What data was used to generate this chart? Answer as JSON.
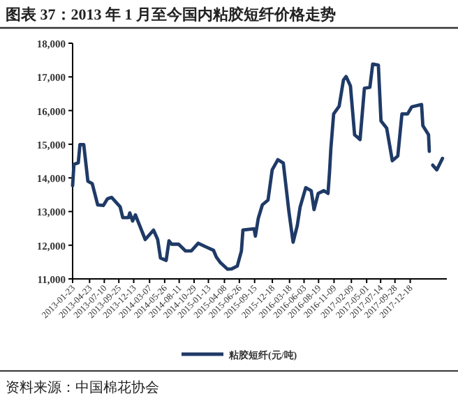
{
  "chart_data": {
    "type": "line",
    "title": "图表 37：2013 年 1 月至今国内粘胶短纤价格走势",
    "annotations": [
      "资料来源：中国棉花协会"
    ],
    "legend": "bottom",
    "x": [
      "2013-01-23",
      "2013-01-30",
      "2013-02-22",
      "2013-03-03",
      "2013-03-23",
      "2013-04-14",
      "2013-05-07",
      "2013-06-05",
      "2013-07-05",
      "2013-07-27",
      "2013-08-18",
      "2013-10-02",
      "2013-10-16",
      "2013-11-15",
      "2013-11-22",
      "2013-12-07",
      "2013-12-22",
      "2014-01-13",
      "2014-02-12",
      "2014-03-06",
      "2014-03-28",
      "2014-04-19",
      "2014-05-04",
      "2014-06-03",
      "2014-06-18",
      "2014-07-02",
      "2014-08-08",
      "2014-09-14",
      "2014-10-14",
      "2014-11-20",
      "2014-12-27",
      "2015-02-09",
      "2015-02-24",
      "2015-03-18",
      "2015-04-24",
      "2015-05-17",
      "2015-06-15",
      "2015-07-07",
      "2015-07-15",
      "2015-09-12",
      "2015-09-19",
      "2015-10-04",
      "2015-10-26",
      "2015-11-25",
      "2015-12-17",
      "2016-01-16",
      "2016-02-14",
      "2016-03-15",
      "2016-04-06",
      "2016-04-28",
      "2016-05-13",
      "2016-06-12",
      "2016-07-11",
      "2016-07-26",
      "2016-08-17",
      "2016-09-16",
      "2016-10-08",
      "2016-10-16",
      "2016-10-23",
      "2016-11-07",
      "2016-12-06",
      "2016-12-29",
      "2017-01-12",
      "2017-02-04",
      "2017-02-26",
      "2017-03-27",
      "2017-04-19",
      "2017-05-18",
      "2017-06-02",
      "2017-07-02",
      "2017-07-16",
      "2017-08-15",
      "2017-09-14",
      "2017-10-13",
      "2017-11-04",
      "2017-12-04",
      "2017-12-26",
      "2018-02-16",
      "2018-02-23",
      "2018-03-25",
      "2018-03-29"
    ],
    "series": [
      {
        "name": "粘胶短纤(元/吨)",
        "color": "#1f3a66",
        "values": [
          13770,
          14400,
          14450,
          14990,
          14990,
          13900,
          13830,
          13200,
          13180,
          13380,
          13420,
          13140,
          12820,
          12820,
          12960,
          12720,
          12900,
          12590,
          12170,
          12310,
          12450,
          12170,
          11620,
          11550,
          12130,
          12030,
          12030,
          11830,
          11830,
          12060,
          11960,
          11850,
          11650,
          11480,
          11290,
          11300,
          11380,
          11830,
          12450,
          12490,
          12270,
          12790,
          13200,
          13340,
          14240,
          14540,
          14440,
          12990,
          12090,
          12580,
          13130,
          13710,
          13620,
          13060,
          13540,
          13620,
          13540,
          14160,
          14860,
          15900,
          16130,
          16910,
          17010,
          16730,
          15280,
          15140,
          16660,
          16690,
          17380,
          17350,
          15690,
          15480,
          14510,
          14650,
          15900,
          15900,
          16110,
          16180,
          15550,
          15280,
          14790
        ]
      },
      {
        "color": "#1f3a66",
        "x": [
          "2018-04-16",
          "2018-05-08",
          "2018-06-07"
        ],
        "values": [
          14380,
          14240,
          14580
        ]
      }
    ],
    "xlim": [
      "2013-01-23",
      "2018-06-30"
    ],
    "xticks": [
      "2013-01-23",
      "2013-04-23",
      "2013-07-10",
      "2013-09-25",
      "2013-12-13",
      "2014-03-07",
      "2014-05-26",
      "2014-08-11",
      "2014-10-29",
      "2015-01-13",
      "2015-04-08",
      "2015-06-26",
      "2015-09-15",
      "2015-12-18",
      "2016-03-18",
      "2016-06-03",
      "2016-08-19",
      "2016-11-09",
      "2017-02-09",
      "2017-05-01",
      "2017-07-14",
      "2017-09-28",
      "2017-12-18"
    ],
    "ylim": [
      11000,
      18000
    ],
    "yticks": [
      {
        "value": 11000,
        "label": "11,000"
      },
      {
        "value": 12000,
        "label": "12,000"
      },
      {
        "value": 13000,
        "label": "13,000"
      },
      {
        "value": 14000,
        "label": "14,000"
      },
      {
        "value": 15000,
        "label": "15,000"
      },
      {
        "value": 16000,
        "label": "16,000"
      },
      {
        "value": 17000,
        "label": "17,000"
      },
      {
        "value": 18000,
        "label": "18,000"
      }
    ]
  }
}
